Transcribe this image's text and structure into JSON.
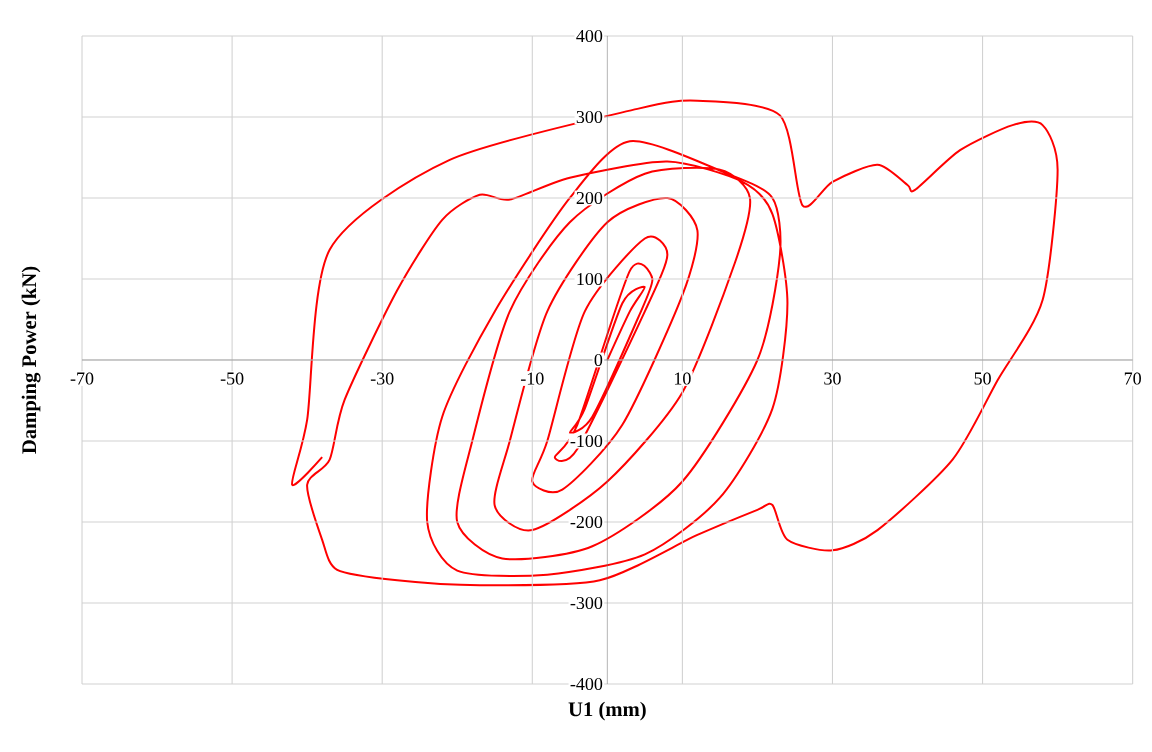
{
  "chart_data": {
    "type": "line",
    "xlabel": "U1 (mm)",
    "ylabel": "Damping Power (kN)",
    "xlim": [
      -70,
      70
    ],
    "ylim": [
      -400,
      400
    ],
    "xticks": [
      -70,
      -50,
      -30,
      -10,
      10,
      30,
      50,
      70
    ],
    "yticks": [
      -400,
      -300,
      -200,
      -100,
      0,
      100,
      200,
      300,
      400
    ],
    "grid": true,
    "series": [
      {
        "color": "#ff0000",
        "x": [
          0,
          3,
          5,
          2,
          -3,
          -5,
          -2,
          4,
          6,
          3,
          -4,
          -7,
          -4,
          5,
          8,
          5,
          -3,
          -8,
          -10,
          -6,
          2,
          10,
          12,
          8,
          0,
          -8,
          -13,
          -15,
          -10,
          0,
          10,
          17,
          19,
          15,
          5,
          -5,
          -13,
          -18,
          -20,
          -14,
          -2,
          10,
          20,
          23,
          22,
          16,
          3,
          -5,
          -15,
          -22,
          -24,
          -20,
          -8,
          5,
          15,
          22,
          24,
          22,
          18,
          8,
          -5,
          -13,
          -17,
          -22,
          -28,
          -35,
          -37,
          -40,
          -38,
          -36,
          -28,
          -17,
          -1,
          12,
          20,
          22,
          24,
          30,
          36,
          46,
          52,
          58,
          60,
          58,
          54,
          47,
          41,
          40,
          36,
          30,
          26,
          23,
          12,
          4,
          -21,
          -37,
          -40,
          -42,
          -38
        ],
        "values": [
          0,
          60,
          90,
          70,
          -60,
          -90,
          -70,
          50,
          100,
          110,
          -80,
          -120,
          -110,
          60,
          130,
          150,
          60,
          -100,
          -150,
          -160,
          -80,
          80,
          160,
          200,
          170,
          60,
          -100,
          -180,
          -210,
          -150,
          -40,
          120,
          200,
          235,
          230,
          170,
          60,
          -100,
          -200,
          -245,
          -230,
          -150,
          0,
          130,
          200,
          230,
          270,
          200,
          60,
          -70,
          -200,
          -260,
          -265,
          -240,
          -170,
          -60,
          70,
          180,
          220,
          245,
          225,
          198,
          204,
          173,
          86,
          -49,
          -123,
          -154,
          -222,
          -259,
          -272,
          -278,
          -272,
          -216,
          -185,
          -179,
          -222,
          -235,
          -210,
          -123,
          -25,
          74,
          235,
          290,
          290,
          259,
          210,
          216,
          241,
          220,
          191,
          302,
          320,
          310,
          247,
          136,
          -74,
          -154,
          -120
        ]
      }
    ]
  }
}
